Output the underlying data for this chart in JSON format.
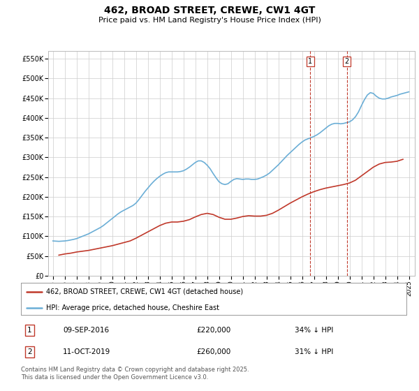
{
  "title": "462, BROAD STREET, CREWE, CW1 4GT",
  "subtitle": "Price paid vs. HM Land Registry's House Price Index (HPI)",
  "ylabel_ticks": [
    "£0",
    "£50K",
    "£100K",
    "£150K",
    "£200K",
    "£250K",
    "£300K",
    "£350K",
    "£400K",
    "£450K",
    "£500K",
    "£550K"
  ],
  "ytick_values": [
    0,
    50000,
    100000,
    150000,
    200000,
    250000,
    300000,
    350000,
    400000,
    450000,
    500000,
    550000
  ],
  "ylim": [
    0,
    570000
  ],
  "xlim_start": 1994.6,
  "xlim_end": 2025.5,
  "xticks": [
    1995,
    1996,
    1997,
    1998,
    1999,
    2000,
    2001,
    2002,
    2003,
    2004,
    2005,
    2006,
    2007,
    2008,
    2009,
    2010,
    2011,
    2012,
    2013,
    2014,
    2015,
    2016,
    2017,
    2018,
    2019,
    2020,
    2021,
    2022,
    2023,
    2024,
    2025
  ],
  "hpi_color": "#6baed6",
  "price_color": "#c0392b",
  "vline1_color": "#c0392b",
  "vline2_color": "#c0392b",
  "vline1_x": 2016.69,
  "vline2_x": 2019.78,
  "sale1_date": "09-SEP-2016",
  "sale1_price": "£220,000",
  "sale1_hpi": "34% ↓ HPI",
  "sale2_date": "11-OCT-2019",
  "sale2_price": "£260,000",
  "sale2_hpi": "31% ↓ HPI",
  "legend1": "462, BROAD STREET, CREWE, CW1 4GT (detached house)",
  "legend2": "HPI: Average price, detached house, Cheshire East",
  "footer": "Contains HM Land Registry data © Crown copyright and database right 2025.\nThis data is licensed under the Open Government Licence v3.0.",
  "bg_color": "#ffffff",
  "grid_color": "#cccccc",
  "title_fontsize": 10,
  "subtitle_fontsize": 8,
  "hpi_data_x": [
    1995.0,
    1995.25,
    1995.5,
    1995.75,
    1996.0,
    1996.25,
    1996.5,
    1996.75,
    1997.0,
    1997.25,
    1997.5,
    1997.75,
    1998.0,
    1998.25,
    1998.5,
    1998.75,
    1999.0,
    1999.25,
    1999.5,
    1999.75,
    2000.0,
    2000.25,
    2000.5,
    2000.75,
    2001.0,
    2001.25,
    2001.5,
    2001.75,
    2002.0,
    2002.25,
    2002.5,
    2002.75,
    2003.0,
    2003.25,
    2003.5,
    2003.75,
    2004.0,
    2004.25,
    2004.5,
    2004.75,
    2005.0,
    2005.25,
    2005.5,
    2005.75,
    2006.0,
    2006.25,
    2006.5,
    2006.75,
    2007.0,
    2007.25,
    2007.5,
    2007.75,
    2008.0,
    2008.25,
    2008.5,
    2008.75,
    2009.0,
    2009.25,
    2009.5,
    2009.75,
    2010.0,
    2010.25,
    2010.5,
    2010.75,
    2011.0,
    2011.25,
    2011.5,
    2011.75,
    2012.0,
    2012.25,
    2012.5,
    2012.75,
    2013.0,
    2013.25,
    2013.5,
    2013.75,
    2014.0,
    2014.25,
    2014.5,
    2014.75,
    2015.0,
    2015.25,
    2015.5,
    2015.75,
    2016.0,
    2016.25,
    2016.5,
    2016.75,
    2017.0,
    2017.25,
    2017.5,
    2017.75,
    2018.0,
    2018.25,
    2018.5,
    2018.75,
    2019.0,
    2019.25,
    2019.5,
    2019.75,
    2020.0,
    2020.25,
    2020.5,
    2020.75,
    2021.0,
    2021.25,
    2021.5,
    2021.75,
    2022.0,
    2022.25,
    2022.5,
    2022.75,
    2023.0,
    2023.25,
    2023.5,
    2023.75,
    2024.0,
    2024.25,
    2024.5,
    2024.75,
    2025.0
  ],
  "hpi_data_y": [
    88000,
    87500,
    87000,
    87500,
    88000,
    89000,
    90500,
    92000,
    94000,
    97000,
    100000,
    103000,
    106000,
    110000,
    114000,
    118000,
    122000,
    127000,
    133000,
    139000,
    145000,
    151000,
    157000,
    162000,
    166000,
    170000,
    174000,
    178000,
    184000,
    193000,
    203000,
    213000,
    222000,
    231000,
    239000,
    246000,
    252000,
    257000,
    261000,
    263000,
    263000,
    263000,
    263000,
    264000,
    266000,
    270000,
    275000,
    281000,
    287000,
    291000,
    291000,
    287000,
    280000,
    271000,
    259000,
    248000,
    238000,
    233000,
    231000,
    233000,
    239000,
    244000,
    246000,
    245000,
    244000,
    245000,
    245000,
    244000,
    244000,
    245000,
    248000,
    251000,
    255000,
    260000,
    267000,
    274000,
    281000,
    289000,
    297000,
    305000,
    312000,
    319000,
    326000,
    333000,
    339000,
    344000,
    347000,
    350000,
    353000,
    357000,
    362000,
    368000,
    374000,
    380000,
    384000,
    386000,
    386000,
    385000,
    386000,
    388000,
    390000,
    395000,
    403000,
    415000,
    431000,
    446000,
    458000,
    464000,
    462000,
    455000,
    450000,
    448000,
    448000,
    450000,
    453000,
    455000,
    457000,
    460000,
    462000,
    464000,
    466000
  ],
  "price_data_x": [
    1995.5,
    1996.0,
    1996.5,
    1997.0,
    1997.5,
    1998.0,
    1998.5,
    1999.0,
    1999.5,
    2000.0,
    2000.5,
    2001.0,
    2001.5,
    2002.0,
    2002.5,
    2003.0,
    2003.5,
    2004.0,
    2004.5,
    2005.0,
    2005.5,
    2006.0,
    2006.5,
    2007.0,
    2007.5,
    2008.0,
    2008.5,
    2009.0,
    2009.5,
    2010.0,
    2010.5,
    2011.0,
    2011.5,
    2012.0,
    2012.5,
    2013.0,
    2013.5,
    2014.0,
    2014.5,
    2015.0,
    2015.5,
    2016.0,
    2016.5,
    2017.0,
    2017.5,
    2018.0,
    2018.5,
    2019.0,
    2019.5,
    2020.0,
    2020.5,
    2021.0,
    2021.5,
    2022.0,
    2022.5,
    2023.0,
    2023.5,
    2024.0,
    2024.5
  ],
  "price_data_y": [
    52000,
    55000,
    57000,
    60000,
    62000,
    64000,
    67000,
    70000,
    73000,
    76000,
    80000,
    84000,
    88000,
    95000,
    103000,
    111000,
    119000,
    127000,
    133000,
    136000,
    136000,
    138000,
    142000,
    149000,
    155000,
    158000,
    155000,
    148000,
    143000,
    143000,
    146000,
    150000,
    152000,
    151000,
    151000,
    153000,
    158000,
    166000,
    175000,
    184000,
    192000,
    200000,
    207000,
    213000,
    218000,
    222000,
    225000,
    228000,
    231000,
    235000,
    242000,
    253000,
    264000,
    275000,
    283000,
    287000,
    288000,
    290000,
    295000
  ]
}
